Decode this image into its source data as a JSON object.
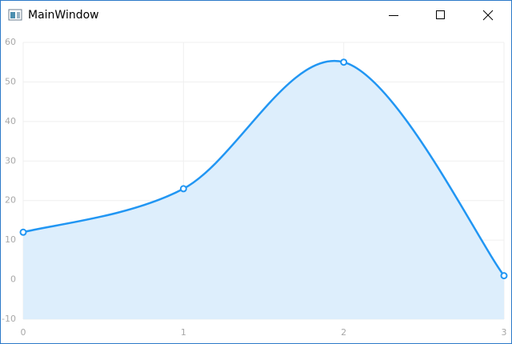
{
  "window": {
    "title": "MainWindow"
  },
  "chart_data": {
    "type": "area",
    "x": [
      0,
      1,
      2,
      3
    ],
    "series": [
      {
        "color": "#2196f3",
        "fill": "#ddeefc",
        "values": [
          12,
          23,
          55,
          1
        ]
      }
    ],
    "xlim": [
      0,
      3
    ],
    "xticks": [
      0,
      1,
      2,
      3
    ],
    "ylim": [
      -10,
      60
    ],
    "yticks": [
      -10,
      0,
      10,
      20,
      30,
      40,
      50,
      60
    ],
    "grid": true,
    "smooth": true
  }
}
